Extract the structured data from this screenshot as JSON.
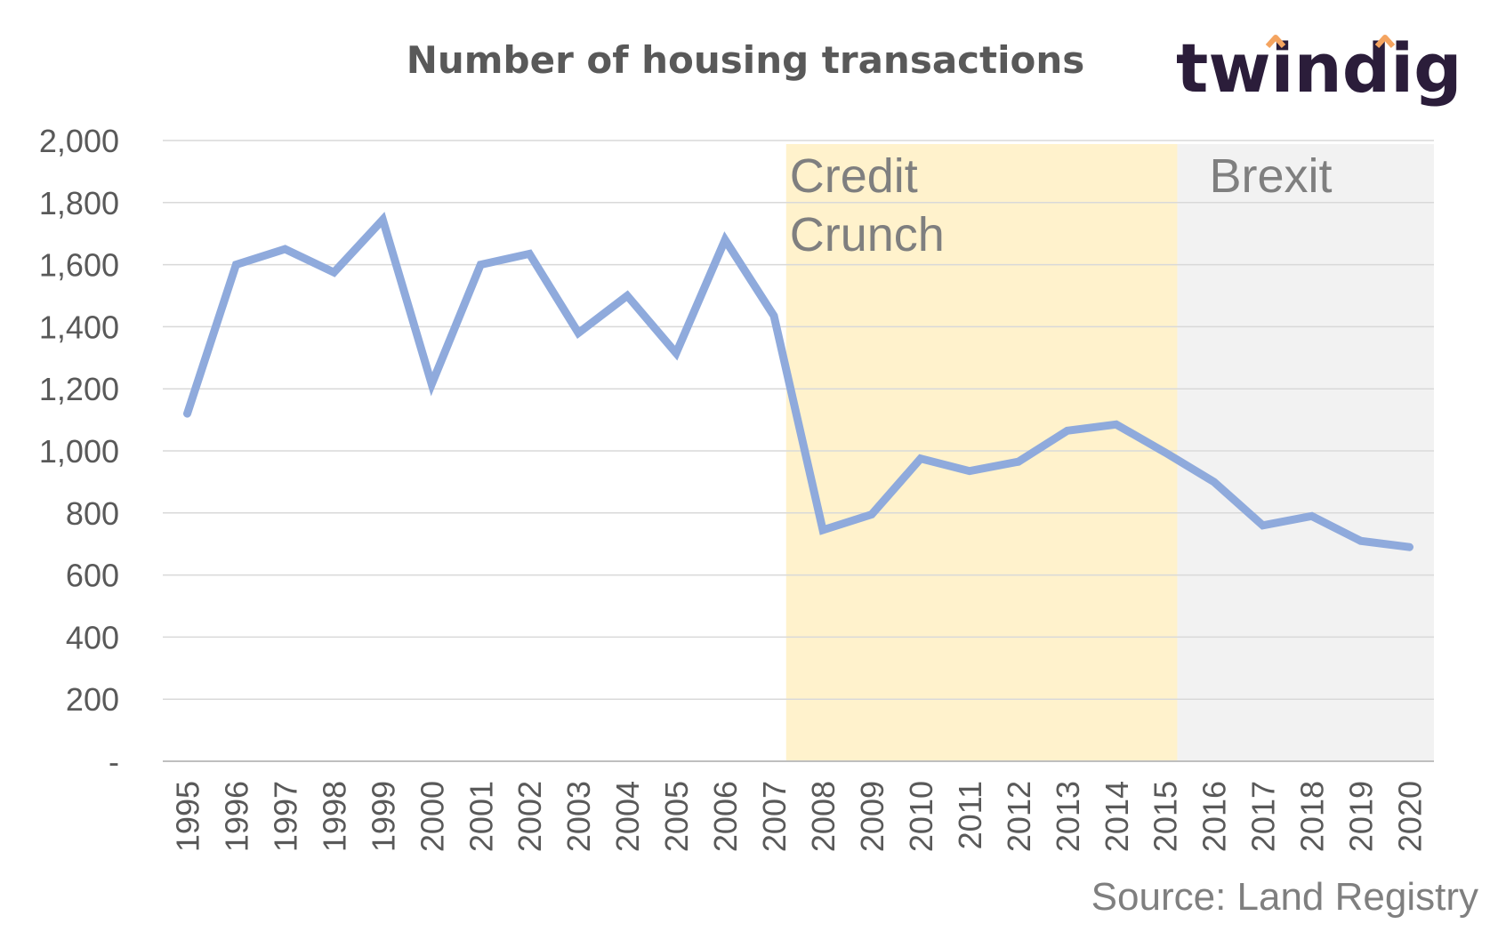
{
  "chart_data": {
    "type": "line",
    "title": "Number of housing transactions",
    "xlabel": "",
    "ylabel": "",
    "categories": [
      "1995",
      "1996",
      "1997",
      "1998",
      "1999",
      "2000",
      "2001",
      "2002",
      "2003",
      "2004",
      "2005",
      "2006",
      "2007",
      "2008",
      "2009",
      "2010",
      "2011",
      "2012",
      "2013",
      "2014",
      "2015",
      "2016",
      "2017",
      "2018",
      "2019",
      "2020"
    ],
    "series": [
      {
        "values": [
          1120,
          1600,
          1650,
          1575,
          1745,
          1215,
          1600,
          1635,
          1380,
          1500,
          1315,
          1680,
          1435,
          745,
          795,
          975,
          935,
          965,
          1065,
          1085,
          995,
          900,
          760,
          790,
          710,
          690
        ]
      }
    ],
    "ylim": [
      0,
      2000
    ],
    "yticks": [
      0,
      200,
      400,
      600,
      800,
      1000,
      1200,
      1400,
      1600,
      1800,
      2000
    ],
    "ytick_labels": [
      "-",
      "200",
      "400",
      "600",
      "800",
      "1,000",
      "1,200",
      "1,400",
      "1,600",
      "1,800",
      "2,000"
    ],
    "grid": true,
    "shaded_regions": [
      {
        "label_lines": [
          "Credit",
          "Crunch"
        ],
        "from": "2007",
        "to": "2015",
        "color": "#fff2cc"
      },
      {
        "label_lines": [
          "Brexit"
        ],
        "from": "2015",
        "to": "2020",
        "color": "#f2f2f2"
      }
    ],
    "line_color": "#8faadc"
  },
  "logo": {
    "text": "twindig",
    "accent_color": "#f4a460"
  },
  "source": "Source: Land Registry"
}
